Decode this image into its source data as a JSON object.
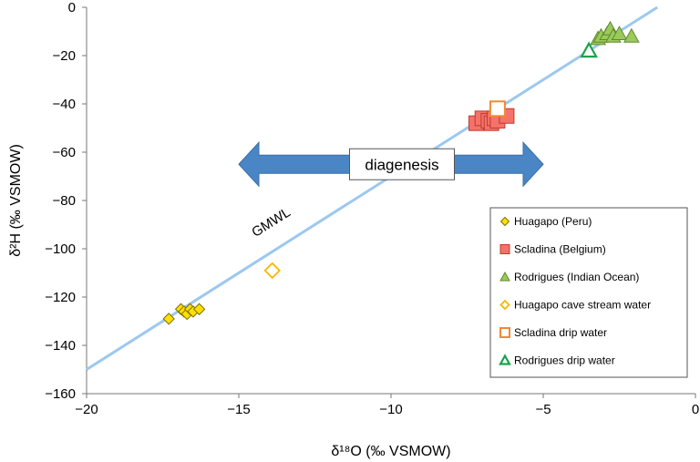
{
  "chart_data": {
    "type": "scatter",
    "xlabel": "δ¹⁸O (‰ VSMOW)",
    "ylabel": "δ²H (‰ VSMOW)",
    "xlim": [
      -20,
      0
    ],
    "ylim": [
      -160,
      0
    ],
    "x_ticks": [
      -20,
      -15,
      -10,
      -5,
      0
    ],
    "y_ticks": [
      0,
      -20,
      -40,
      -60,
      -80,
      -100,
      -120,
      -140,
      -160
    ],
    "grid": false,
    "legend_position": "bottom-right",
    "series": [
      {
        "name": "Huagapo (Peru)",
        "marker": "diamond",
        "fill": "#FFE000",
        "stroke": "#7F6F00",
        "points": [
          [
            -17.3,
            -129
          ],
          [
            -16.9,
            -125
          ],
          [
            -16.8,
            -126
          ],
          [
            -16.7,
            -127
          ],
          [
            -16.6,
            -125
          ],
          [
            -16.5,
            -126
          ],
          [
            -16.3,
            -125
          ]
        ]
      },
      {
        "name": "Scladina (Belgium)",
        "marker": "square",
        "fill": "#F4726A",
        "stroke": "#C0392B",
        "points": [
          [
            -7.2,
            -48
          ],
          [
            -7.0,
            -46
          ],
          [
            -6.8,
            -47
          ],
          [
            -6.7,
            -48
          ],
          [
            -6.6,
            -46
          ],
          [
            -6.5,
            -47
          ],
          [
            -6.2,
            -45
          ]
        ]
      },
      {
        "name": "Rodrigues (Indian Ocean)",
        "marker": "triangle",
        "fill": "#9BC95B",
        "stroke": "#5E8A2C",
        "points": [
          [
            -3.2,
            -13
          ],
          [
            -3.1,
            -12
          ],
          [
            -2.9,
            -11
          ],
          [
            -2.8,
            -9
          ],
          [
            -2.7,
            -12
          ],
          [
            -2.5,
            -11
          ],
          [
            -2.1,
            -12
          ]
        ]
      },
      {
        "name": "Huagapo cave stream water",
        "marker": "diamond-open",
        "fill": "#FFFFFF",
        "stroke": "#F5B800",
        "points": [
          [
            -13.9,
            -109
          ]
        ]
      },
      {
        "name": "Scladina drip water",
        "marker": "square-open",
        "fill": "#FFFFFF",
        "stroke": "#F28A30",
        "points": [
          [
            -6.5,
            -42
          ]
        ]
      },
      {
        "name": "Rodrigues drip water",
        "marker": "triangle-open",
        "fill": "#FFFFFF",
        "stroke": "#1BA34A",
        "points": [
          [
            -3.5,
            -18
          ]
        ]
      }
    ],
    "reference_line": {
      "label": "GMWL",
      "color": "#9CC8F0",
      "from": [
        -20,
        -150
      ],
      "to": [
        -1.25,
        0
      ]
    },
    "annotation": {
      "text": "diagenesis",
      "arrow_from": -15,
      "arrow_to": -5,
      "arrow_y": -65,
      "color": "#4A86C6"
    }
  }
}
